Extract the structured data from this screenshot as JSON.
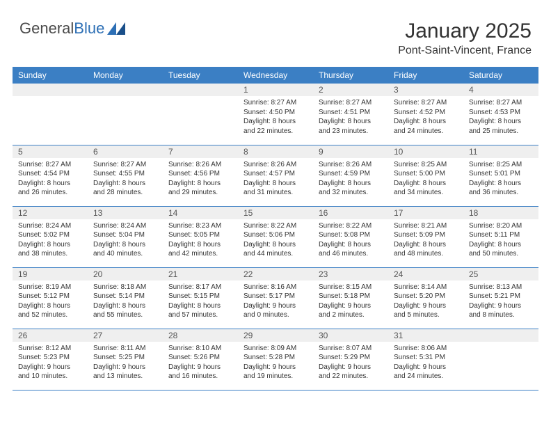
{
  "logo": {
    "word1": "General",
    "word2": "Blue"
  },
  "title": "January 2025",
  "location": "Pont-Saint-Vincent, France",
  "colors": {
    "header_bg": "#3b7fc4",
    "header_text": "#ffffff",
    "daynum_bg": "#efefef",
    "border": "#3b7fc4",
    "logo_gray": "#4a4a4a",
    "logo_blue": "#2d6fb5"
  },
  "weekday_labels": [
    "Sunday",
    "Monday",
    "Tuesday",
    "Wednesday",
    "Thursday",
    "Friday",
    "Saturday"
  ],
  "weeks": [
    [
      {
        "n": "",
        "sr": "",
        "ss": "",
        "dl1": "",
        "dl2": ""
      },
      {
        "n": "",
        "sr": "",
        "ss": "",
        "dl1": "",
        "dl2": ""
      },
      {
        "n": "",
        "sr": "",
        "ss": "",
        "dl1": "",
        "dl2": ""
      },
      {
        "n": "1",
        "sr": "Sunrise: 8:27 AM",
        "ss": "Sunset: 4:50 PM",
        "dl1": "Daylight: 8 hours",
        "dl2": "and 22 minutes."
      },
      {
        "n": "2",
        "sr": "Sunrise: 8:27 AM",
        "ss": "Sunset: 4:51 PM",
        "dl1": "Daylight: 8 hours",
        "dl2": "and 23 minutes."
      },
      {
        "n": "3",
        "sr": "Sunrise: 8:27 AM",
        "ss": "Sunset: 4:52 PM",
        "dl1": "Daylight: 8 hours",
        "dl2": "and 24 minutes."
      },
      {
        "n": "4",
        "sr": "Sunrise: 8:27 AM",
        "ss": "Sunset: 4:53 PM",
        "dl1": "Daylight: 8 hours",
        "dl2": "and 25 minutes."
      }
    ],
    [
      {
        "n": "5",
        "sr": "Sunrise: 8:27 AM",
        "ss": "Sunset: 4:54 PM",
        "dl1": "Daylight: 8 hours",
        "dl2": "and 26 minutes."
      },
      {
        "n": "6",
        "sr": "Sunrise: 8:27 AM",
        "ss": "Sunset: 4:55 PM",
        "dl1": "Daylight: 8 hours",
        "dl2": "and 28 minutes."
      },
      {
        "n": "7",
        "sr": "Sunrise: 8:26 AM",
        "ss": "Sunset: 4:56 PM",
        "dl1": "Daylight: 8 hours",
        "dl2": "and 29 minutes."
      },
      {
        "n": "8",
        "sr": "Sunrise: 8:26 AM",
        "ss": "Sunset: 4:57 PM",
        "dl1": "Daylight: 8 hours",
        "dl2": "and 31 minutes."
      },
      {
        "n": "9",
        "sr": "Sunrise: 8:26 AM",
        "ss": "Sunset: 4:59 PM",
        "dl1": "Daylight: 8 hours",
        "dl2": "and 32 minutes."
      },
      {
        "n": "10",
        "sr": "Sunrise: 8:25 AM",
        "ss": "Sunset: 5:00 PM",
        "dl1": "Daylight: 8 hours",
        "dl2": "and 34 minutes."
      },
      {
        "n": "11",
        "sr": "Sunrise: 8:25 AM",
        "ss": "Sunset: 5:01 PM",
        "dl1": "Daylight: 8 hours",
        "dl2": "and 36 minutes."
      }
    ],
    [
      {
        "n": "12",
        "sr": "Sunrise: 8:24 AM",
        "ss": "Sunset: 5:02 PM",
        "dl1": "Daylight: 8 hours",
        "dl2": "and 38 minutes."
      },
      {
        "n": "13",
        "sr": "Sunrise: 8:24 AM",
        "ss": "Sunset: 5:04 PM",
        "dl1": "Daylight: 8 hours",
        "dl2": "and 40 minutes."
      },
      {
        "n": "14",
        "sr": "Sunrise: 8:23 AM",
        "ss": "Sunset: 5:05 PM",
        "dl1": "Daylight: 8 hours",
        "dl2": "and 42 minutes."
      },
      {
        "n": "15",
        "sr": "Sunrise: 8:22 AM",
        "ss": "Sunset: 5:06 PM",
        "dl1": "Daylight: 8 hours",
        "dl2": "and 44 minutes."
      },
      {
        "n": "16",
        "sr": "Sunrise: 8:22 AM",
        "ss": "Sunset: 5:08 PM",
        "dl1": "Daylight: 8 hours",
        "dl2": "and 46 minutes."
      },
      {
        "n": "17",
        "sr": "Sunrise: 8:21 AM",
        "ss": "Sunset: 5:09 PM",
        "dl1": "Daylight: 8 hours",
        "dl2": "and 48 minutes."
      },
      {
        "n": "18",
        "sr": "Sunrise: 8:20 AM",
        "ss": "Sunset: 5:11 PM",
        "dl1": "Daylight: 8 hours",
        "dl2": "and 50 minutes."
      }
    ],
    [
      {
        "n": "19",
        "sr": "Sunrise: 8:19 AM",
        "ss": "Sunset: 5:12 PM",
        "dl1": "Daylight: 8 hours",
        "dl2": "and 52 minutes."
      },
      {
        "n": "20",
        "sr": "Sunrise: 8:18 AM",
        "ss": "Sunset: 5:14 PM",
        "dl1": "Daylight: 8 hours",
        "dl2": "and 55 minutes."
      },
      {
        "n": "21",
        "sr": "Sunrise: 8:17 AM",
        "ss": "Sunset: 5:15 PM",
        "dl1": "Daylight: 8 hours",
        "dl2": "and 57 minutes."
      },
      {
        "n": "22",
        "sr": "Sunrise: 8:16 AM",
        "ss": "Sunset: 5:17 PM",
        "dl1": "Daylight: 9 hours",
        "dl2": "and 0 minutes."
      },
      {
        "n": "23",
        "sr": "Sunrise: 8:15 AM",
        "ss": "Sunset: 5:18 PM",
        "dl1": "Daylight: 9 hours",
        "dl2": "and 2 minutes."
      },
      {
        "n": "24",
        "sr": "Sunrise: 8:14 AM",
        "ss": "Sunset: 5:20 PM",
        "dl1": "Daylight: 9 hours",
        "dl2": "and 5 minutes."
      },
      {
        "n": "25",
        "sr": "Sunrise: 8:13 AM",
        "ss": "Sunset: 5:21 PM",
        "dl1": "Daylight: 9 hours",
        "dl2": "and 8 minutes."
      }
    ],
    [
      {
        "n": "26",
        "sr": "Sunrise: 8:12 AM",
        "ss": "Sunset: 5:23 PM",
        "dl1": "Daylight: 9 hours",
        "dl2": "and 10 minutes."
      },
      {
        "n": "27",
        "sr": "Sunrise: 8:11 AM",
        "ss": "Sunset: 5:25 PM",
        "dl1": "Daylight: 9 hours",
        "dl2": "and 13 minutes."
      },
      {
        "n": "28",
        "sr": "Sunrise: 8:10 AM",
        "ss": "Sunset: 5:26 PM",
        "dl1": "Daylight: 9 hours",
        "dl2": "and 16 minutes."
      },
      {
        "n": "29",
        "sr": "Sunrise: 8:09 AM",
        "ss": "Sunset: 5:28 PM",
        "dl1": "Daylight: 9 hours",
        "dl2": "and 19 minutes."
      },
      {
        "n": "30",
        "sr": "Sunrise: 8:07 AM",
        "ss": "Sunset: 5:29 PM",
        "dl1": "Daylight: 9 hours",
        "dl2": "and 22 minutes."
      },
      {
        "n": "31",
        "sr": "Sunrise: 8:06 AM",
        "ss": "Sunset: 5:31 PM",
        "dl1": "Daylight: 9 hours",
        "dl2": "and 24 minutes."
      },
      {
        "n": "",
        "sr": "",
        "ss": "",
        "dl1": "",
        "dl2": ""
      }
    ]
  ]
}
